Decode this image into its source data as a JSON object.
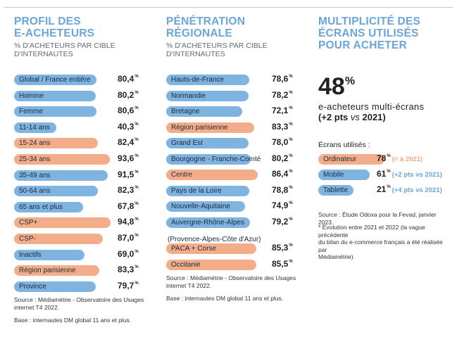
{
  "colors": {
    "blue": "#7fb3e0",
    "orange": "#f4ad8a",
    "title_blue": "#6aa6d8"
  },
  "col1": {
    "title": "PROFIL DES\nE-ACHETEURS",
    "subtitle": "% D'ACHETEURS PAR CIBLE\nD'INTERNAUTES",
    "source": "Source : Médiamétrie - Observatoire des Usages\ninternet T4 2022.",
    "base": "Base : internautes DM global 11 ans et plus."
  },
  "col2": {
    "title": "PÉNÉTRATION\nRÉGIONALE",
    "subtitle": "% D'ACHETEURS PAR CIBLE\nD'INTERNAUTES",
    "pre_label": "(Provence-Alpes-Côte d'Azur)",
    "source": "Source : Médiamétrie - Observatoire des Usages\ninternet T4 2022.",
    "base": "Base : internautes DM global 11 ans et plus."
  },
  "col3": {
    "title": "MULTIPLICITÉ DES\nÉCRANS UTILISÉS\nPOUR ACHETER",
    "big_value": "48",
    "big_unit": "%",
    "big_desc": "e-acheteurs multi-écrans",
    "big_sub_a": "(+2 pts ",
    "big_sub_b": "vs",
    "big_sub_c": " 2021)",
    "screens_title": "Écrans utilisés :",
    "source": "Source : Étude Odoxa pour la Fevad, janvier 2023.",
    "note": "* Évolution entre 2021 et 2022 (la vague précédente\ndu bilan du e-commerce français a été réalisée par\nMédiamétrie)."
  },
  "chart_data": [
    {
      "type": "bar",
      "title": "PROFIL DES E-ACHETEURS",
      "subtitle": "% D'ACHETEURS PAR CIBLE D'INTERNAUTES",
      "unit": "%",
      "categories": [
        "Global / France entière",
        "Homme",
        "Femme",
        "11-14 ans",
        "15-24 ans",
        "25-34 ans",
        "35-49 ans",
        "50-64 ans",
        "65 ans et plus",
        "CSP+",
        "CSP-",
        "Inactifs",
        "Région parisienne",
        "Province"
      ],
      "values": [
        80.4,
        80.2,
        80.6,
        40.3,
        82.4,
        93.6,
        91.5,
        82.3,
        67.8,
        94.8,
        87.0,
        69.0,
        83.3,
        79.7
      ],
      "labels": [
        "80,4",
        "80,2",
        "80,6",
        "40,3",
        "82,4",
        "93,6",
        "91,5",
        "82,3",
        "67,8",
        "94,8",
        "87,0",
        "69,0",
        "83,3",
        "79,7"
      ],
      "highlight": [
        false,
        false,
        false,
        false,
        true,
        true,
        false,
        false,
        false,
        true,
        true,
        false,
        true,
        false
      ]
    },
    {
      "type": "bar",
      "title": "PÉNÉTRATION RÉGIONALE",
      "subtitle": "% D'ACHETEURS PAR CIBLE D'INTERNAUTES",
      "unit": "%",
      "categories": [
        "Hauts-de-France",
        "Normandie",
        "Bretagne",
        "Région parisienne",
        "Grand Est",
        "Bourgogne - Franche-Comté",
        "Centre",
        "Pays de la Loire",
        "Nouvelle-Aquitaine",
        "Auvergne-Rhône-Alpes",
        "PACA + Corse",
        "Occitanie"
      ],
      "values": [
        78.6,
        78.2,
        72.1,
        83.3,
        78.0,
        80.2,
        86.4,
        78.8,
        74.9,
        79.2,
        85.3,
        85.5
      ],
      "labels": [
        "78,6",
        "78,2",
        "72,1",
        "83,3",
        "78,0",
        "80,2",
        "86,4",
        "78,8",
        "74,9",
        "79,2",
        "85,3",
        "85,5"
      ],
      "highlight": [
        false,
        false,
        false,
        true,
        false,
        false,
        true,
        false,
        false,
        false,
        true,
        true
      ]
    },
    {
      "type": "bar",
      "title": "MULTIPLICITÉ DES ÉCRANS UTILISÉS POUR ACHETER",
      "unit": "%",
      "categories": [
        "Ordinateur",
        "Mobile",
        "Tablette"
      ],
      "values": [
        78,
        61,
        21
      ],
      "labels": [
        "78",
        "61",
        "21"
      ],
      "evolution": [
        "(= à 2021)",
        "(+2 pts vs 2021)",
        "(+4 pts vs 2021)"
      ],
      "highlight": [
        true,
        false,
        false
      ]
    }
  ]
}
